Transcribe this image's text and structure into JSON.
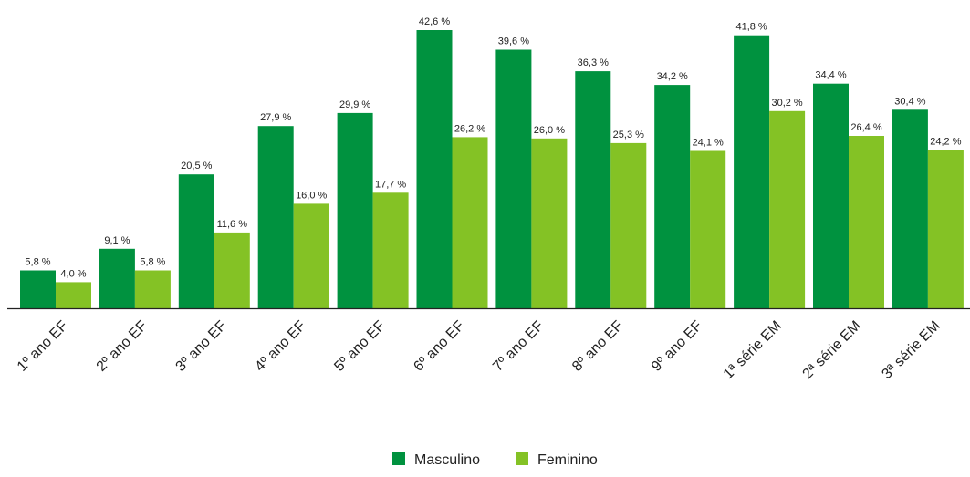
{
  "chart_data": {
    "type": "bar",
    "categories": [
      "1º ano EF",
      "2º ano EF",
      "3º ano EF",
      "4º ano EF",
      "5º ano EF",
      "6º ano EF",
      "7º ano EF",
      "8º ano EF",
      "9º ano EF",
      "1ª série EM",
      "2ª série EM",
      "3ª série EM"
    ],
    "series": [
      {
        "name": "Masculino",
        "color": "#00923f",
        "values": [
          5.8,
          9.1,
          20.5,
          27.9,
          29.9,
          42.6,
          39.6,
          36.3,
          34.2,
          41.8,
          34.4,
          30.4
        ],
        "labels": [
          "5,8 %",
          "9,1 %",
          "20,5 %",
          "27,9 %",
          "29,9 %",
          "42,6 %",
          "39,6 %",
          "36,3 %",
          "34,2 %",
          "41,8 %",
          "34,4 %",
          "30,4 %"
        ]
      },
      {
        "name": "Feminino",
        "color": "#84c225",
        "values": [
          4.0,
          5.8,
          11.6,
          16.0,
          17.7,
          26.2,
          26.0,
          25.3,
          24.1,
          30.2,
          26.4,
          24.2
        ],
        "labels": [
          "4,0 %",
          "5,8 %",
          "11,6 %",
          "16,0 %",
          "17,7 %",
          "26,2 %",
          "26,0 %",
          "25,3 %",
          "24,1 %",
          "30,2 %",
          "26,4 %",
          "24,2 %"
        ]
      }
    ],
    "ylim": [
      0,
      42.6
    ],
    "grid": false,
    "legend_position": "bottom-center"
  }
}
